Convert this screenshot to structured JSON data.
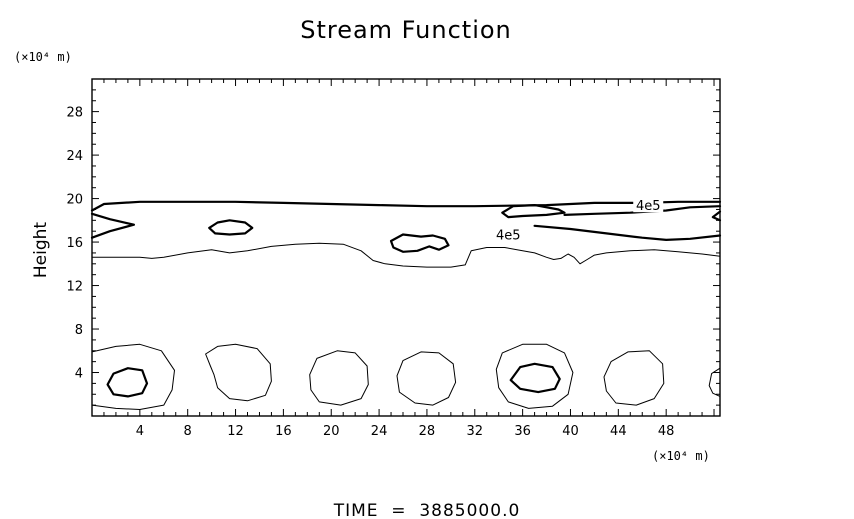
{
  "chart_data": {
    "type": "contour",
    "title": "Stream Function",
    "xlabel": "",
    "ylabel": "Height",
    "x_unit": "(×10⁴ m)",
    "y_unit": "(×10⁴ m)",
    "xlim": [
      0,
      52.5
    ],
    "ylim": [
      0,
      31
    ],
    "x_ticks": [
      4,
      8,
      12,
      16,
      20,
      24,
      28,
      32,
      36,
      40,
      44,
      48
    ],
    "y_ticks": [
      4,
      8,
      12,
      16,
      20,
      24,
      28
    ],
    "contour_labels": [
      "4e5",
      "4e5"
    ],
    "footer": "TIME  =  3885000.0",
    "contours": [
      {
        "name": "upper-band-top",
        "weight": "thick",
        "points": [
          [
            0,
            18.9
          ],
          [
            1,
            19.5
          ],
          [
            4,
            19.7
          ],
          [
            8,
            19.7
          ],
          [
            12,
            19.7
          ],
          [
            16,
            19.6
          ],
          [
            20,
            19.5
          ],
          [
            24,
            19.4
          ],
          [
            28,
            19.3
          ],
          [
            30,
            19.3
          ],
          [
            32,
            19.3
          ],
          [
            38,
            19.4
          ],
          [
            42,
            19.6
          ],
          [
            46,
            19.6
          ],
          [
            49,
            19.7
          ],
          [
            52.5,
            19.7
          ]
        ]
      },
      {
        "name": "upper-band-bottom",
        "weight": "thick",
        "points": [
          [
            0,
            16.4
          ],
          [
            1.5,
            17.0
          ],
          [
            3.5,
            17.6
          ],
          [
            1.5,
            18.1
          ],
          [
            0,
            18.6
          ]
        ]
      },
      {
        "name": "band-lower-right",
        "weight": "thick",
        "points": [
          [
            37,
            17.5
          ],
          [
            40,
            17.2
          ],
          [
            43,
            16.8
          ],
          [
            46,
            16.4
          ],
          [
            48,
            16.2
          ],
          [
            50,
            16.3
          ],
          [
            52.5,
            16.6
          ]
        ]
      },
      {
        "name": "right-band-upper",
        "weight": "thick",
        "points": [
          [
            39.5,
            18.5
          ],
          [
            42,
            18.6
          ],
          [
            45,
            18.7
          ],
          [
            48,
            18.9
          ],
          [
            50,
            19.2
          ],
          [
            52.5,
            19.3
          ]
        ]
      },
      {
        "name": "right-stub",
        "weight": "thick",
        "points": [
          [
            52.5,
            18.0
          ],
          [
            51.9,
            18.3
          ],
          [
            52.5,
            18.8
          ]
        ]
      },
      {
        "name": "lens-12",
        "weight": "thick",
        "closed": true,
        "points": [
          [
            9.8,
            17.3
          ],
          [
            10.5,
            17.8
          ],
          [
            11.5,
            18.0
          ],
          [
            12.8,
            17.8
          ],
          [
            13.4,
            17.3
          ],
          [
            12.8,
            16.8
          ],
          [
            11.5,
            16.7
          ],
          [
            10.3,
            16.8
          ]
        ]
      },
      {
        "name": "blob-28",
        "weight": "thick",
        "closed": true,
        "points": [
          [
            25.0,
            16.1
          ],
          [
            26.0,
            16.7
          ],
          [
            27.5,
            16.5
          ],
          [
            28.5,
            16.6
          ],
          [
            29.5,
            16.3
          ],
          [
            29.8,
            15.7
          ],
          [
            29.0,
            15.3
          ],
          [
            28.2,
            15.6
          ],
          [
            27.2,
            15.2
          ],
          [
            26.0,
            15.1
          ],
          [
            25.2,
            15.5
          ]
        ]
      },
      {
        "name": "blob-36",
        "weight": "thick",
        "closed": true,
        "points": [
          [
            34.3,
            18.7
          ],
          [
            35.2,
            19.3
          ],
          [
            37,
            19.4
          ],
          [
            39.0,
            19.0
          ],
          [
            39.5,
            18.7
          ],
          [
            38,
            18.5
          ],
          [
            36,
            18.4
          ],
          [
            34.8,
            18.3
          ]
        ]
      },
      {
        "name": "lower-wave",
        "weight": "thin",
        "points": [
          [
            0,
            14.6
          ],
          [
            2,
            14.6
          ],
          [
            4,
            14.6
          ],
          [
            5,
            14.5
          ],
          [
            6,
            14.6
          ],
          [
            8,
            15.0
          ],
          [
            10,
            15.3
          ],
          [
            11.5,
            15.0
          ],
          [
            13,
            15.2
          ],
          [
            15,
            15.6
          ],
          [
            17,
            15.8
          ],
          [
            19,
            15.9
          ],
          [
            21,
            15.8
          ],
          [
            22.5,
            15.2
          ],
          [
            23.5,
            14.3
          ],
          [
            24.5,
            14.0
          ],
          [
            26,
            13.8
          ],
          [
            28,
            13.7
          ],
          [
            30,
            13.7
          ],
          [
            31.2,
            13.9
          ],
          [
            31.7,
            15.2
          ],
          [
            33,
            15.5
          ],
          [
            34.5,
            15.5
          ],
          [
            36,
            15.2
          ],
          [
            37,
            15.0
          ],
          [
            38,
            14.6
          ],
          [
            38.6,
            14.4
          ],
          [
            39.2,
            14.5
          ],
          [
            39.8,
            14.9
          ],
          [
            40.3,
            14.6
          ],
          [
            40.8,
            14.0
          ],
          [
            41.4,
            14.4
          ],
          [
            42,
            14.8
          ],
          [
            43,
            15.0
          ],
          [
            45,
            15.2
          ],
          [
            47,
            15.3
          ],
          [
            49,
            15.1
          ],
          [
            51,
            14.9
          ],
          [
            52.5,
            14.7
          ]
        ]
      },
      {
        "name": "cell-l1-outer",
        "weight": "thin",
        "points": [
          [
            0,
            5.9
          ],
          [
            2,
            6.4
          ],
          [
            4,
            6.6
          ],
          [
            5.8,
            6.0
          ],
          [
            6.9,
            4.2
          ],
          [
            6.7,
            2.4
          ],
          [
            6.0,
            1.0
          ],
          [
            4,
            0.6
          ],
          [
            2,
            0.7
          ],
          [
            0,
            1.0
          ]
        ]
      },
      {
        "name": "cell-l1-inner",
        "weight": "thick",
        "closed": true,
        "points": [
          [
            1.3,
            2.9
          ],
          [
            1.8,
            3.9
          ],
          [
            3.0,
            4.4
          ],
          [
            4.2,
            4.2
          ],
          [
            4.6,
            3.0
          ],
          [
            4.2,
            2.1
          ],
          [
            3.0,
            1.8
          ],
          [
            1.8,
            2.0
          ]
        ]
      },
      {
        "name": "cell-l2",
        "weight": "thin",
        "closed": true,
        "points": [
          [
            9.5,
            5.7
          ],
          [
            10.5,
            6.4
          ],
          [
            12,
            6.6
          ],
          [
            13.8,
            6.2
          ],
          [
            14.9,
            4.8
          ],
          [
            15.0,
            3.2
          ],
          [
            14.5,
            1.9
          ],
          [
            13,
            1.4
          ],
          [
            11.5,
            1.6
          ],
          [
            10.5,
            2.6
          ],
          [
            10.2,
            3.8
          ],
          [
            9.9,
            4.6
          ]
        ]
      },
      {
        "name": "cell-l3",
        "weight": "thin",
        "closed": true,
        "points": [
          [
            18.2,
            3.8
          ],
          [
            18.8,
            5.3
          ],
          [
            20.5,
            6.0
          ],
          [
            22,
            5.8
          ],
          [
            23.0,
            4.6
          ],
          [
            23.1,
            2.9
          ],
          [
            22.5,
            1.6
          ],
          [
            20.8,
            1.0
          ],
          [
            19.0,
            1.3
          ],
          [
            18.3,
            2.4
          ]
        ]
      },
      {
        "name": "cell-l4",
        "weight": "thin",
        "closed": true,
        "points": [
          [
            25.5,
            3.7
          ],
          [
            26.0,
            5.1
          ],
          [
            27.5,
            5.9
          ],
          [
            29,
            5.8
          ],
          [
            30.2,
            4.8
          ],
          [
            30.4,
            3.1
          ],
          [
            29.8,
            1.7
          ],
          [
            28.5,
            1.0
          ],
          [
            27.0,
            1.2
          ],
          [
            25.7,
            2.2
          ]
        ]
      },
      {
        "name": "cell-l5-outer",
        "weight": "thin",
        "closed": true,
        "points": [
          [
            33.8,
            4.3
          ],
          [
            34.3,
            5.8
          ],
          [
            36,
            6.6
          ],
          [
            38,
            6.6
          ],
          [
            39.5,
            5.8
          ],
          [
            40.2,
            4.0
          ],
          [
            39.8,
            2.0
          ],
          [
            38.5,
            0.9
          ],
          [
            36.5,
            0.7
          ],
          [
            34.8,
            1.3
          ],
          [
            34.0,
            2.6
          ]
        ]
      },
      {
        "name": "cell-l5-inner",
        "weight": "thick",
        "closed": true,
        "points": [
          [
            35.0,
            3.3
          ],
          [
            35.8,
            4.5
          ],
          [
            37.0,
            4.8
          ],
          [
            38.5,
            4.5
          ],
          [
            39.1,
            3.4
          ],
          [
            38.7,
            2.5
          ],
          [
            37.3,
            2.2
          ],
          [
            35.8,
            2.5
          ]
        ]
      },
      {
        "name": "cell-l6",
        "weight": "thin",
        "closed": true,
        "points": [
          [
            42.8,
            3.6
          ],
          [
            43.4,
            5.0
          ],
          [
            44.8,
            5.9
          ],
          [
            46.6,
            6.0
          ],
          [
            47.7,
            4.8
          ],
          [
            47.8,
            3.0
          ],
          [
            47.0,
            1.6
          ],
          [
            45.5,
            1.0
          ],
          [
            43.8,
            1.2
          ],
          [
            43.0,
            2.3
          ]
        ]
      },
      {
        "name": "cell-l7-partial",
        "weight": "thin",
        "points": [
          [
            52.5,
            4.4
          ],
          [
            51.8,
            3.9
          ],
          [
            51.6,
            2.8
          ],
          [
            51.9,
            2.1
          ],
          [
            52.5,
            1.8
          ]
        ]
      }
    ]
  },
  "contour_label_positions": [
    [
      46.5,
      19.3
    ],
    [
      34.8,
      16.6
    ]
  ]
}
